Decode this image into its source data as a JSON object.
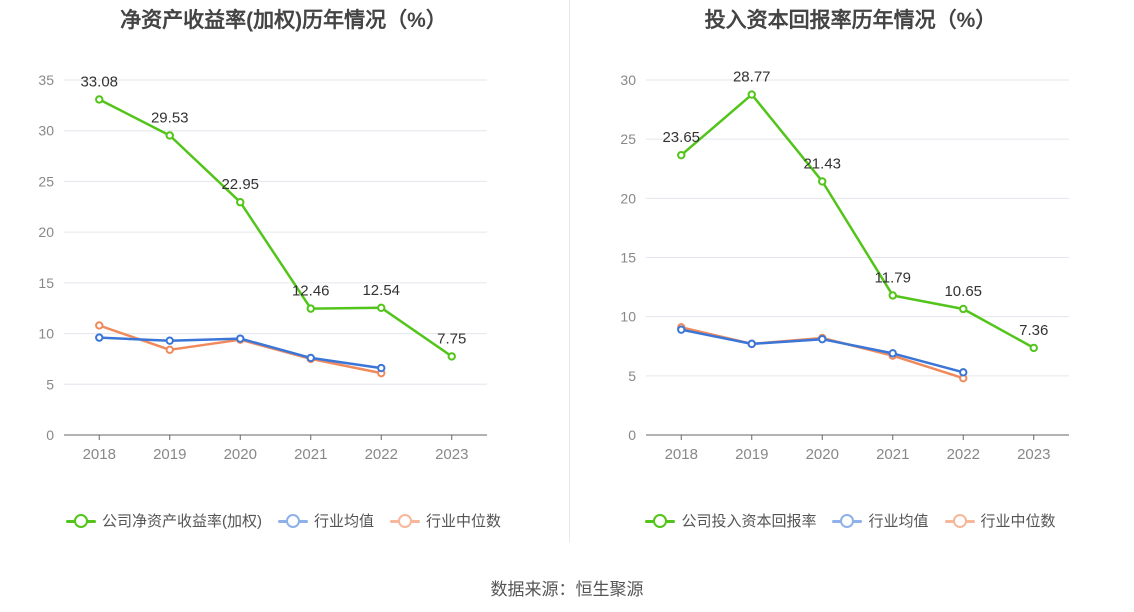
{
  "chart_data": [
    {
      "type": "line",
      "title": "净资产收益率(加权)历年情况（%）",
      "categories": [
        "2018",
        "2019",
        "2020",
        "2021",
        "2022",
        "2023"
      ],
      "ylim": [
        0,
        35
      ],
      "yticks": [
        "0",
        "5",
        "10",
        "15",
        "20",
        "25",
        "30",
        "35"
      ],
      "grid": true,
      "legend_position": "bottom",
      "series": [
        {
          "name": "公司净资产收益率(加权)",
          "color": "#52c41a",
          "values": [
            33.08,
            29.53,
            22.95,
            12.46,
            12.54,
            7.75
          ],
          "labels": [
            "33.08",
            "29.53",
            "22.95",
            "12.46",
            "12.54",
            "7.75"
          ]
        },
        {
          "name": "行业均值",
          "color": "#3a76d8",
          "legend_color": "#8fb1ea",
          "values": [
            9.6,
            9.3,
            9.5,
            7.6,
            6.6,
            null
          ]
        },
        {
          "name": "行业中位数",
          "color": "#f08a5d",
          "legend_color": "#f7b79a",
          "values": [
            10.8,
            8.4,
            9.4,
            7.5,
            6.1,
            null
          ]
        }
      ]
    },
    {
      "type": "line",
      "title": "投入资本回报率历年情况（%）",
      "categories": [
        "2018",
        "2019",
        "2020",
        "2021",
        "2022",
        "2023"
      ],
      "ylim": [
        0,
        30
      ],
      "yticks": [
        "0",
        "5",
        "10",
        "15",
        "20",
        "25",
        "30"
      ],
      "grid": true,
      "legend_position": "bottom",
      "series": [
        {
          "name": "公司投入资本回报率",
          "color": "#52c41a",
          "values": [
            23.65,
            28.77,
            21.43,
            11.79,
            10.65,
            7.36
          ],
          "labels": [
            "23.65",
            "28.77",
            "21.43",
            "11.79",
            "10.65",
            "7.36"
          ]
        },
        {
          "name": "行业均值",
          "color": "#3a76d8",
          "legend_color": "#8fb1ea",
          "values": [
            8.9,
            7.7,
            8.1,
            6.9,
            5.3,
            null
          ]
        },
        {
          "name": "行业中位数",
          "color": "#f08a5d",
          "legend_color": "#f7b79a",
          "values": [
            9.1,
            7.7,
            8.2,
            6.7,
            4.8,
            null
          ]
        }
      ]
    }
  ],
  "footer": {
    "source": "数据来源：恒生聚源"
  }
}
